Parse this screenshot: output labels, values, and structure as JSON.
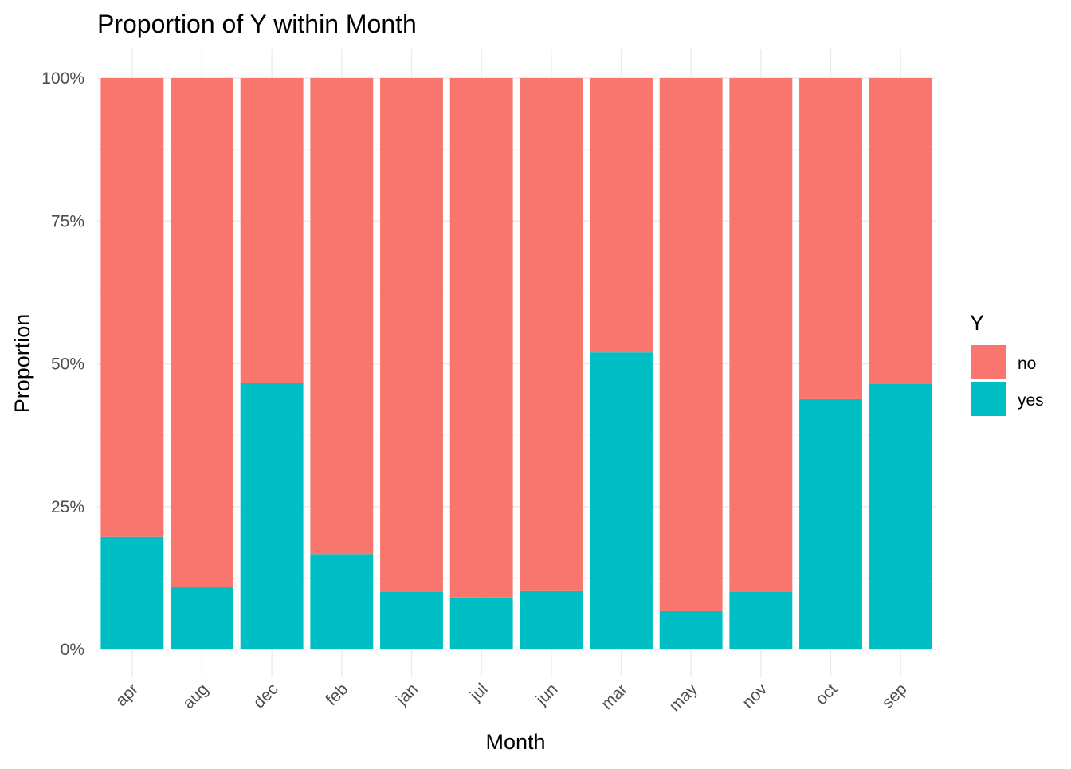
{
  "chart_data": {
    "type": "bar",
    "stacked": "fill",
    "title": "Proportion of Y within Month",
    "xlabel": "Month",
    "ylabel": "Proportion",
    "ylim": [
      0,
      1
    ],
    "y_ticks": [
      {
        "value": 0,
        "label": "0%"
      },
      {
        "value": 0.25,
        "label": "25%"
      },
      {
        "value": 0.5,
        "label": "50%"
      },
      {
        "value": 0.75,
        "label": "75%"
      },
      {
        "value": 1,
        "label": "100%"
      }
    ],
    "categories": [
      "apr",
      "aug",
      "dec",
      "feb",
      "jan",
      "jul",
      "jun",
      "mar",
      "may",
      "nov",
      "oct",
      "sep"
    ],
    "series": [
      {
        "name": "no",
        "color": "#F8766D",
        "values": [
          0.803,
          0.89,
          0.533,
          0.833,
          0.899,
          0.909,
          0.898,
          0.48,
          0.933,
          0.899,
          0.562,
          0.535
        ]
      },
      {
        "name": "yes",
        "color": "#00BFC4",
        "values": [
          0.197,
          0.11,
          0.467,
          0.167,
          0.101,
          0.091,
          0.102,
          0.52,
          0.067,
          0.101,
          0.438,
          0.465
        ]
      }
    ],
    "legend": {
      "title": "Y",
      "position": "right"
    },
    "grid": true
  }
}
